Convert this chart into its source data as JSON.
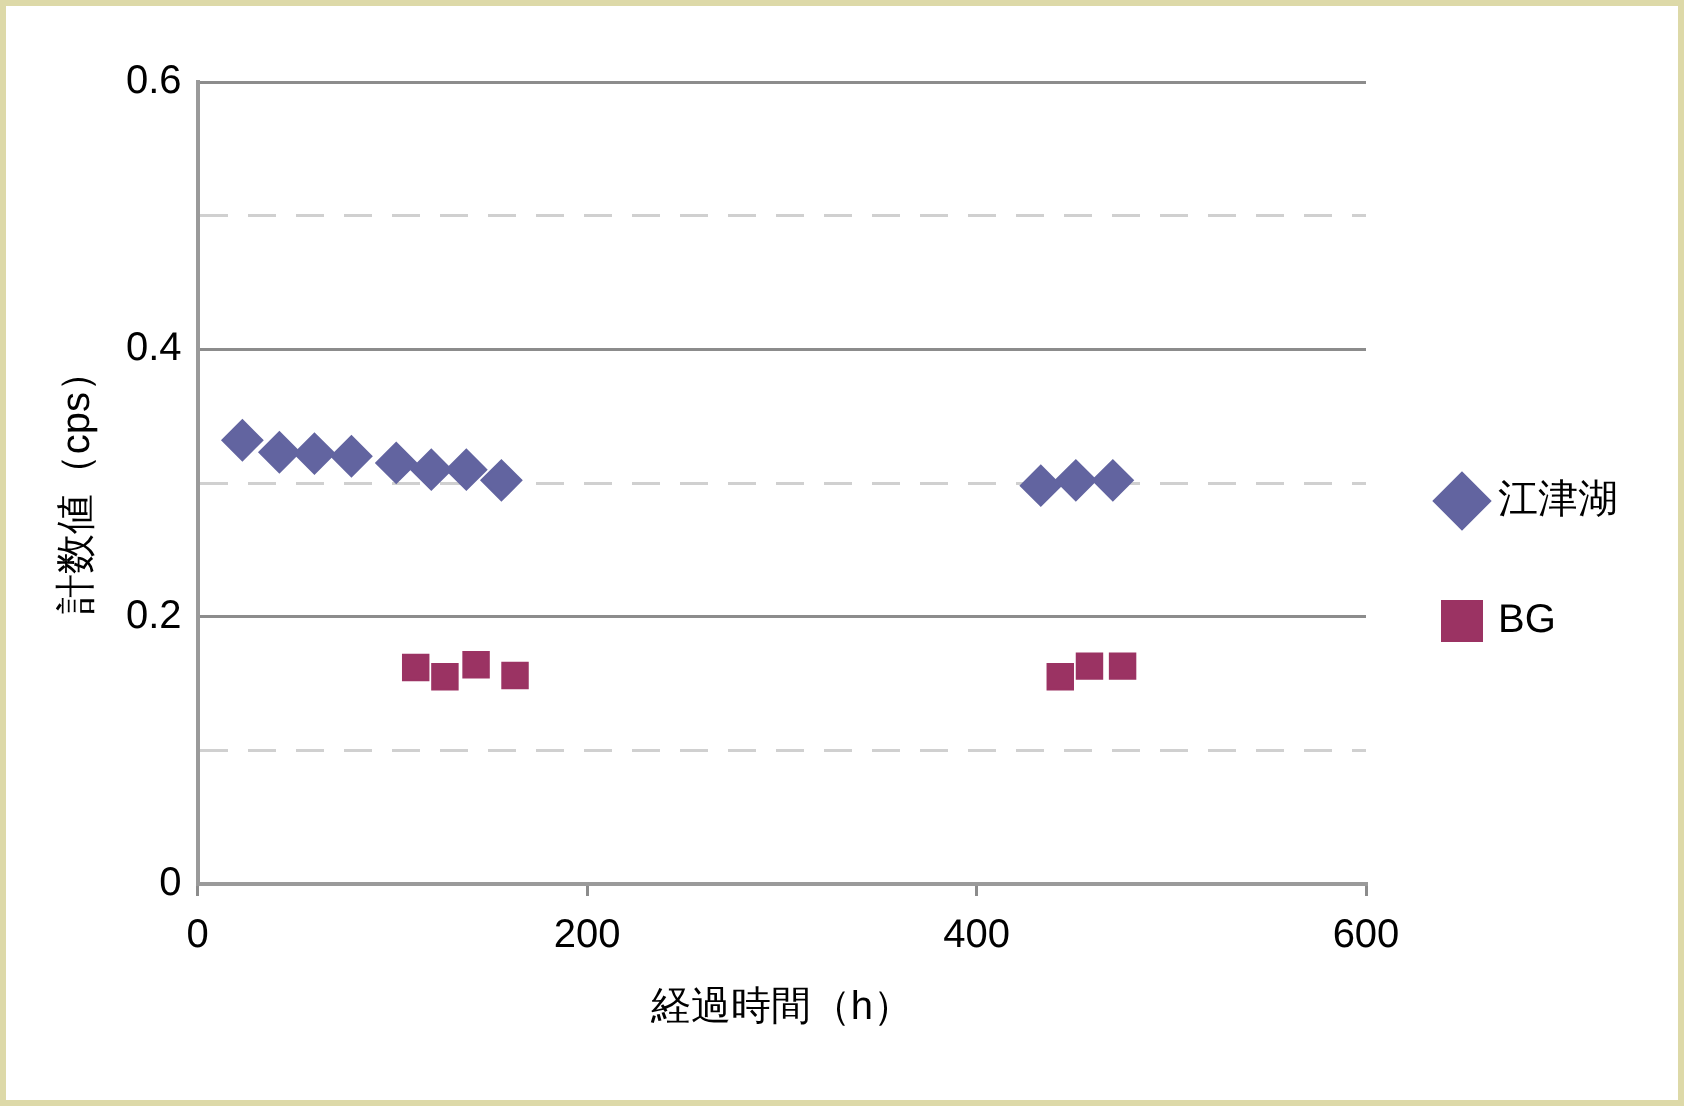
{
  "chart_data": {
    "type": "scatter",
    "xlabel": "経過時間（h）",
    "ylabel": "計数値（cps）",
    "series": [
      {
        "name": "江津湖",
        "color": "#6264a0",
        "marker": "diamond",
        "x": [
          23,
          42,
          60,
          79,
          102,
          120,
          138,
          156,
          433,
          451,
          470
        ],
        "values": [
          0.332,
          0.323,
          0.322,
          0.32,
          0.315,
          0.31,
          0.31,
          0.302,
          0.298,
          0.302,
          0.302
        ]
      },
      {
        "name": "BG",
        "color": "#9b3363",
        "marker": "square",
        "x": [
          112,
          127,
          143,
          163,
          443,
          458,
          475
        ],
        "values": [
          0.162,
          0.155,
          0.164,
          0.156,
          0.155,
          0.163,
          0.163
        ]
      }
    ],
    "xlim": [
      0,
      600
    ],
    "xticks": [
      0,
      200,
      400,
      600
    ],
    "ylim": [
      0,
      0.6
    ],
    "yticks": [
      0,
      {
        "value": 0.1,
        "label": null
      },
      0.2,
      {
        "value": 0.3,
        "label": null
      },
      0.4,
      {
        "value": 0.5,
        "label": null
      },
      0.6
    ],
    "grid": "y",
    "legend": "right"
  }
}
